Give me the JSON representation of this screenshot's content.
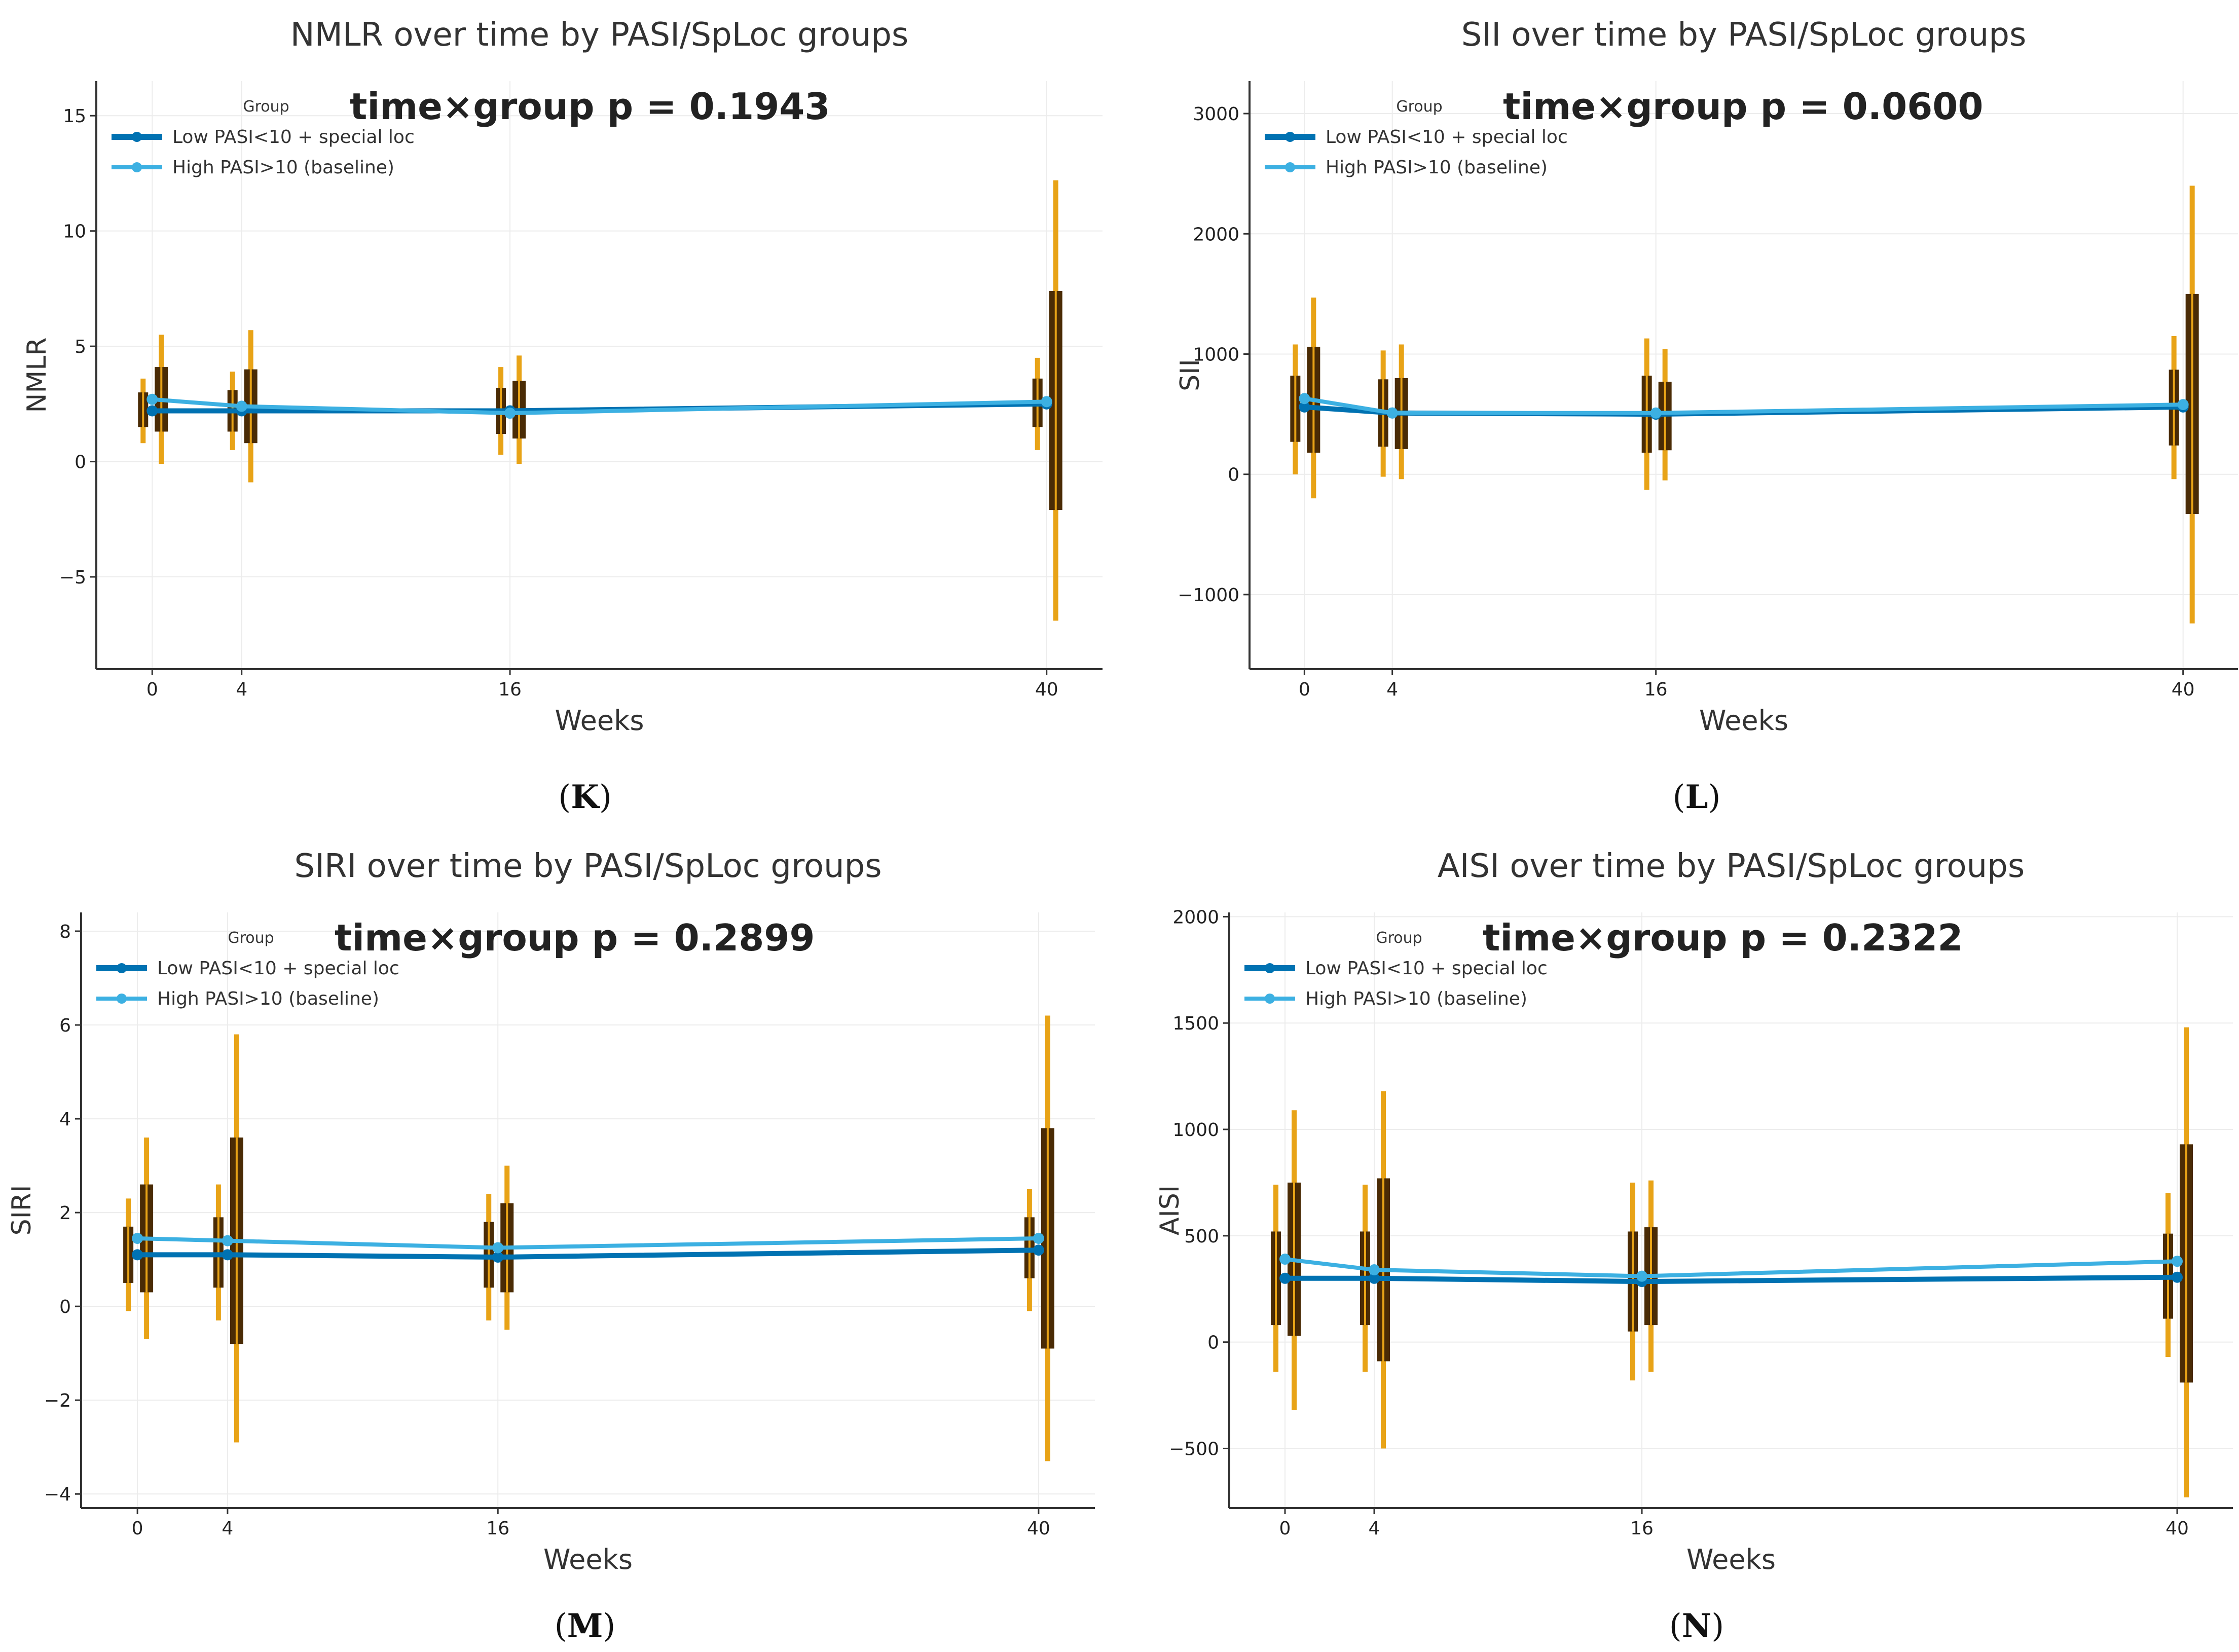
{
  "figure": {
    "panel_labels": [
      "K",
      "L",
      "M",
      "N"
    ]
  },
  "chart_data": [
    {
      "type": "line",
      "title": "NMLR over time by PASI/SpLoc groups",
      "xlabel": "Weeks",
      "ylabel": "NMLR",
      "annotation": "time×group p = 0.1943",
      "legend_title": "Group",
      "legend_position": "top-left",
      "x": [
        0,
        4,
        16,
        40
      ],
      "x_ticks": [
        0,
        4,
        16,
        40
      ],
      "xlim": [
        -2.5,
        42.5
      ],
      "ylim": [
        -9,
        16.5
      ],
      "y_ticks": [
        -5,
        0,
        5,
        10,
        15
      ],
      "grid": true,
      "series": [
        {
          "name": "Low PASI<10 + special loc",
          "color": "#0072b2",
          "values": [
            2.2,
            2.2,
            2.2,
            2.5
          ],
          "ci": [
            [
              0.8,
              3.6
            ],
            [
              0.5,
              3.9
            ],
            [
              0.3,
              4.1
            ],
            [
              0.5,
              4.5
            ]
          ],
          "box": [
            [
              1.5,
              3.0
            ],
            [
              1.3,
              3.1
            ],
            [
              1.2,
              3.2
            ],
            [
              1.5,
              3.6
            ]
          ]
        },
        {
          "name": "High PASI>10 (baseline)",
          "color": "#3cb0e2",
          "values": [
            2.7,
            2.4,
            2.1,
            2.6
          ],
          "ci": [
            [
              -0.1,
              5.5
            ],
            [
              -0.9,
              5.7
            ],
            [
              -0.1,
              4.6
            ],
            [
              -6.9,
              12.2
            ]
          ],
          "box": [
            [
              1.3,
              4.1
            ],
            [
              0.8,
              4.0
            ],
            [
              1.0,
              3.5
            ],
            [
              -2.1,
              7.4
            ]
          ]
        }
      ]
    },
    {
      "type": "line",
      "title": "SII over time by PASI/SpLoc groups",
      "xlabel": "Weeks",
      "ylabel": "SII",
      "annotation": "time×group p = 0.0600",
      "legend_title": "Group",
      "legend_position": "top-left",
      "x": [
        0,
        4,
        16,
        40
      ],
      "x_ticks": [
        0,
        4,
        16,
        40
      ],
      "xlim": [
        -2.5,
        42.5
      ],
      "ylim": [
        -1620,
        3270
      ],
      "y_ticks": [
        -1000,
        0,
        1000,
        2000,
        3000
      ],
      "grid": true,
      "series": [
        {
          "name": "Low PASI<10 + special loc",
          "color": "#0072b2",
          "values": [
            560,
            510,
            500,
            560
          ],
          "ci": [
            [
              0,
              1080
            ],
            [
              -20,
              1030
            ],
            [
              -130,
              1130
            ],
            [
              -40,
              1150
            ]
          ],
          "box": [
            [
              270,
              820
            ],
            [
              230,
              790
            ],
            [
              180,
              820
            ],
            [
              240,
              870
            ]
          ]
        },
        {
          "name": "High PASI>10 (baseline)",
          "color": "#3cb0e2",
          "values": [
            630,
            510,
            510,
            580
          ],
          "ci": [
            [
              -200,
              1470
            ],
            [
              -40,
              1080
            ],
            [
              -50,
              1040
            ],
            [
              -1240,
              2400
            ]
          ],
          "box": [
            [
              180,
              1060
            ],
            [
              210,
              800
            ],
            [
              200,
              770
            ],
            [
              -330,
              1500
            ]
          ]
        }
      ]
    },
    {
      "type": "line",
      "title": "SIRI over time by PASI/SpLoc groups",
      "xlabel": "Weeks",
      "ylabel": "SIRI",
      "annotation": "time×group p = 0.2899",
      "legend_title": "Group",
      "legend_position": "top-left",
      "x": [
        0,
        4,
        16,
        40
      ],
      "x_ticks": [
        0,
        4,
        16,
        40
      ],
      "xlim": [
        -2.5,
        42.5
      ],
      "ylim": [
        -4.3,
        8.4
      ],
      "y_ticks": [
        -4,
        -2,
        0,
        2,
        4,
        6,
        8
      ],
      "grid": true,
      "series": [
        {
          "name": "Low PASI<10 + special loc",
          "color": "#0072b2",
          "values": [
            1.1,
            1.1,
            1.05,
            1.2
          ],
          "ci": [
            [
              -0.1,
              2.3
            ],
            [
              -0.3,
              2.6
            ],
            [
              -0.3,
              2.4
            ],
            [
              -0.1,
              2.5
            ]
          ],
          "box": [
            [
              0.5,
              1.7
            ],
            [
              0.4,
              1.9
            ],
            [
              0.4,
              1.8
            ],
            [
              0.6,
              1.9
            ]
          ]
        },
        {
          "name": "High PASI>10 (baseline)",
          "color": "#3cb0e2",
          "values": [
            1.45,
            1.4,
            1.25,
            1.45
          ],
          "ci": [
            [
              -0.7,
              3.6
            ],
            [
              -2.9,
              5.8
            ],
            [
              -0.5,
              3.0
            ],
            [
              -3.3,
              6.2
            ]
          ],
          "box": [
            [
              0.3,
              2.6
            ],
            [
              -0.8,
              3.6
            ],
            [
              0.3,
              2.2
            ],
            [
              -0.9,
              3.8
            ]
          ]
        }
      ]
    },
    {
      "type": "line",
      "title": "AISI over time by PASI/SpLoc groups",
      "xlabel": "Weeks",
      "ylabel": "AISI",
      "annotation": "time×group p = 0.2322",
      "legend_title": "Group",
      "legend_position": "top-left",
      "x": [
        0,
        4,
        16,
        40
      ],
      "x_ticks": [
        0,
        4,
        16,
        40
      ],
      "xlim": [
        -2.5,
        42.5
      ],
      "ylim": [
        -780,
        2020
      ],
      "y_ticks": [
        -500,
        0,
        500,
        1000,
        1500,
        2000
      ],
      "grid": true,
      "series": [
        {
          "name": "Low PASI<10 + special loc",
          "color": "#0072b2",
          "values": [
            300,
            300,
            285,
            305
          ],
          "ci": [
            [
              -140,
              740
            ],
            [
              -140,
              740
            ],
            [
              -180,
              750
            ],
            [
              -70,
              700
            ]
          ],
          "box": [
            [
              80,
              520
            ],
            [
              80,
              520
            ],
            [
              50,
              520
            ],
            [
              110,
              510
            ]
          ]
        },
        {
          "name": "High PASI>10 (baseline)",
          "color": "#3cb0e2",
          "values": [
            390,
            340,
            310,
            380
          ],
          "ci": [
            [
              -320,
              1090
            ],
            [
              -500,
              1180
            ],
            [
              -140,
              760
            ],
            [
              -730,
              1480
            ]
          ],
          "box": [
            [
              30,
              750
            ],
            [
              -90,
              770
            ],
            [
              80,
              540
            ],
            [
              -190,
              930
            ]
          ]
        }
      ]
    }
  ]
}
